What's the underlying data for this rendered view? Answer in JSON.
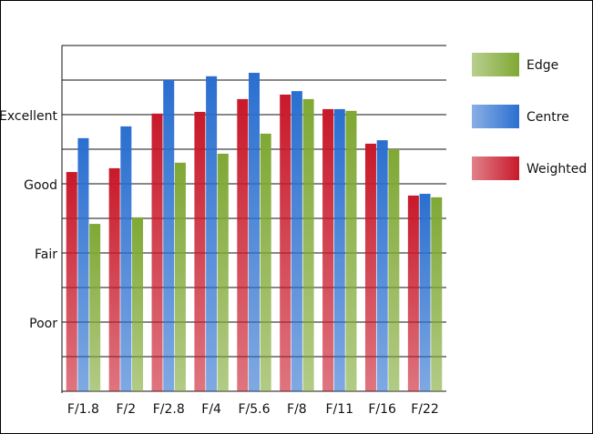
{
  "chart_data": {
    "type": "bar",
    "categories": [
      "F/1.8",
      "F/2",
      "F/2.8",
      "F/4",
      "F/5.6",
      "F/8",
      "F/11",
      "F/16",
      "F/22"
    ],
    "series": [
      {
        "name": "Weighted",
        "color": "#c8192a",
        "values": [
          6.34,
          6.45,
          8.03,
          8.08,
          8.45,
          8.58,
          8.16,
          7.16,
          5.66
        ]
      },
      {
        "name": "Centre",
        "color": "#2a6fd0",
        "values": [
          7.32,
          7.66,
          9.0,
          9.11,
          9.21,
          8.68,
          8.16,
          7.26,
          5.71
        ]
      },
      {
        "name": "Edge",
        "color": "#7fa834",
        "values": [
          4.84,
          5.03,
          6.61,
          6.87,
          7.45,
          8.45,
          8.11,
          7.0,
          5.61
        ]
      }
    ],
    "ylim": [
      0,
      10
    ],
    "yticks": [
      {
        "value": 2,
        "label": "Poor"
      },
      {
        "value": 4,
        "label": "Fair"
      },
      {
        "value": 6,
        "label": "Good"
      },
      {
        "value": 8,
        "label": "Excellent"
      }
    ],
    "minor_yticks": [
      1,
      3,
      5,
      7,
      9,
      10
    ],
    "grid": true
  }
}
